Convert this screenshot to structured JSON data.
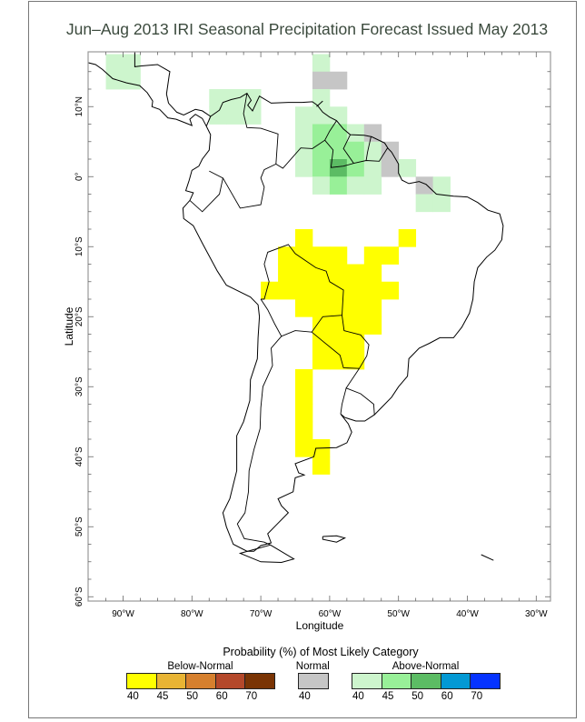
{
  "title": "Jun–Aug 2013 IRI Seasonal Precipitation Forecast Issued May 2013",
  "axes": {
    "xlabel": "Longitude",
    "ylabel": "Latitude",
    "lon_ticks": [
      {
        "lon": -90,
        "label": "90°W"
      },
      {
        "lon": -80,
        "label": "80°W"
      },
      {
        "lon": -70,
        "label": "70°W"
      },
      {
        "lon": -60,
        "label": "60°W"
      },
      {
        "lon": -50,
        "label": "50°W"
      },
      {
        "lon": -40,
        "label": "40°W"
      },
      {
        "lon": -30,
        "label": "30°W"
      }
    ],
    "lat_ticks": [
      {
        "lat": 10,
        "label": "10°N"
      },
      {
        "lat": 0,
        "label": "0°"
      },
      {
        "lat": -10,
        "label": "10°S"
      },
      {
        "lat": -20,
        "label": "20°S"
      },
      {
        "lat": -30,
        "label": "30°S"
      },
      {
        "lat": -40,
        "label": "40°S"
      },
      {
        "lat": -50,
        "label": "50°S"
      },
      {
        "lat": -60,
        "label": "60°S"
      }
    ],
    "lon_range": [
      -95,
      -28
    ],
    "lat_range": [
      -60.6,
      17.8
    ]
  },
  "legend": {
    "title": "Probability (%) of Most Likely Category",
    "groups": [
      {
        "name": "Below-Normal",
        "key": "B",
        "levels": [
          {
            "label": "40",
            "color": "#ffff00"
          },
          {
            "label": "45",
            "color": "#e8b434"
          },
          {
            "label": "50",
            "color": "#d6802e"
          },
          {
            "label": "60",
            "color": "#b4482a"
          },
          {
            "label": "70",
            "color": "#7a3404"
          }
        ]
      },
      {
        "name": "Normal",
        "key": "N",
        "levels": [
          {
            "label": "40",
            "color": "#c6c6c6"
          }
        ]
      },
      {
        "name": "Above-Normal",
        "key": "A",
        "levels": [
          {
            "label": "40",
            "color": "#cdf5cd"
          },
          {
            "label": "45",
            "color": "#98f098"
          },
          {
            "label": "50",
            "color": "#5cbc64"
          },
          {
            "label": "60",
            "color": "#0399d4"
          },
          {
            "label": "70",
            "color": "#0533ff"
          }
        ]
      }
    ]
  },
  "cell_size_deg": 2.5,
  "cells": [
    {
      "lon": -92.5,
      "lat": 17.5,
      "cat": "A",
      "p": 40
    },
    {
      "lon": -90,
      "lat": 17.5,
      "cat": "A",
      "p": 40
    },
    {
      "lon": -92.5,
      "lat": 15,
      "cat": "A",
      "p": 40
    },
    {
      "lon": -90,
      "lat": 15,
      "cat": "A",
      "p": 40
    },
    {
      "lon": -77.5,
      "lat": 12.5,
      "cat": "A",
      "p": 40
    },
    {
      "lon": -75,
      "lat": 12.5,
      "cat": "A",
      "p": 40
    },
    {
      "lon": -72.5,
      "lat": 12.5,
      "cat": "A",
      "p": 40
    },
    {
      "lon": -77.5,
      "lat": 10,
      "cat": "A",
      "p": 40
    },
    {
      "lon": -75,
      "lat": 10,
      "cat": "A",
      "p": 40
    },
    {
      "lon": -72.5,
      "lat": 10,
      "cat": "A",
      "p": 40
    },
    {
      "lon": -62.5,
      "lat": 17.5,
      "cat": "A",
      "p": 40
    },
    {
      "lon": -62.5,
      "lat": 15,
      "cat": "N",
      "p": 40
    },
    {
      "lon": -60,
      "lat": 15,
      "cat": "N",
      "p": 40
    },
    {
      "lon": -62.5,
      "lat": 12.5,
      "cat": "A",
      "p": 40
    },
    {
      "lon": -65,
      "lat": 10,
      "cat": "A",
      "p": 40
    },
    {
      "lon": -62.5,
      "lat": 10,
      "cat": "A",
      "p": 40
    },
    {
      "lon": -60,
      "lat": 10,
      "cat": "A",
      "p": 40
    },
    {
      "lon": -65,
      "lat": 7.5,
      "cat": "A",
      "p": 40
    },
    {
      "lon": -62.5,
      "lat": 7.5,
      "cat": "A",
      "p": 45
    },
    {
      "lon": -60,
      "lat": 7.5,
      "cat": "A",
      "p": 45
    },
    {
      "lon": -57.5,
      "lat": 7.5,
      "cat": "A",
      "p": 40
    },
    {
      "lon": -55,
      "lat": 7.5,
      "cat": "N",
      "p": 40
    },
    {
      "lon": -65,
      "lat": 5,
      "cat": "A",
      "p": 40
    },
    {
      "lon": -62.5,
      "lat": 5,
      "cat": "A",
      "p": 45
    },
    {
      "lon": -60,
      "lat": 5,
      "cat": "A",
      "p": 45
    },
    {
      "lon": -57.5,
      "lat": 5,
      "cat": "A",
      "p": 45
    },
    {
      "lon": -55,
      "lat": 5,
      "cat": "A",
      "p": 40
    },
    {
      "lon": -52.5,
      "lat": 5,
      "cat": "N",
      "p": 40
    },
    {
      "lon": -65,
      "lat": 2.5,
      "cat": "A",
      "p": 40
    },
    {
      "lon": -62.5,
      "lat": 2.5,
      "cat": "A",
      "p": 45
    },
    {
      "lon": -60,
      "lat": 2.5,
      "cat": "A",
      "p": 50
    },
    {
      "lon": -57.5,
      "lat": 2.5,
      "cat": "A",
      "p": 45
    },
    {
      "lon": -55,
      "lat": 2.5,
      "cat": "A",
      "p": 40
    },
    {
      "lon": -52.5,
      "lat": 2.5,
      "cat": "N",
      "p": 40
    },
    {
      "lon": -50,
      "lat": 2.5,
      "cat": "A",
      "p": 40
    },
    {
      "lon": -62.5,
      "lat": 0,
      "cat": "A",
      "p": 40
    },
    {
      "lon": -60,
      "lat": 0,
      "cat": "A",
      "p": 45
    },
    {
      "lon": -57.5,
      "lat": 0,
      "cat": "A",
      "p": 40
    },
    {
      "lon": -55,
      "lat": 0,
      "cat": "A",
      "p": 40
    },
    {
      "lon": -47.5,
      "lat": 0,
      "cat": "N",
      "p": 40
    },
    {
      "lon": -45,
      "lat": 0,
      "cat": "A",
      "p": 40
    },
    {
      "lon": -47.5,
      "lat": -2.5,
      "cat": "A",
      "p": 40
    },
    {
      "lon": -45,
      "lat": -2.5,
      "cat": "A",
      "p": 40
    },
    {
      "lon": -65,
      "lat": -7.5,
      "cat": "B",
      "p": 40
    },
    {
      "lon": -50,
      "lat": -7.5,
      "cat": "B",
      "p": 40
    },
    {
      "lon": -67.5,
      "lat": -10,
      "cat": "B",
      "p": 40
    },
    {
      "lon": -65,
      "lat": -10,
      "cat": "B",
      "p": 40
    },
    {
      "lon": -62.5,
      "lat": -10,
      "cat": "B",
      "p": 40
    },
    {
      "lon": -60,
      "lat": -10,
      "cat": "B",
      "p": 40
    },
    {
      "lon": -55,
      "lat": -10,
      "cat": "B",
      "p": 40
    },
    {
      "lon": -52.5,
      "lat": -10,
      "cat": "B",
      "p": 40
    },
    {
      "lon": -67.5,
      "lat": -12.5,
      "cat": "B",
      "p": 40
    },
    {
      "lon": -65,
      "lat": -12.5,
      "cat": "B",
      "p": 40
    },
    {
      "lon": -62.5,
      "lat": -12.5,
      "cat": "B",
      "p": 40
    },
    {
      "lon": -60,
      "lat": -12.5,
      "cat": "B",
      "p": 40
    },
    {
      "lon": -57.5,
      "lat": -12.5,
      "cat": "B",
      "p": 40
    },
    {
      "lon": -55,
      "lat": -12.5,
      "cat": "B",
      "p": 40
    },
    {
      "lon": -70,
      "lat": -15,
      "cat": "B",
      "p": 40
    },
    {
      "lon": -67.5,
      "lat": -15,
      "cat": "B",
      "p": 40
    },
    {
      "lon": -65,
      "lat": -15,
      "cat": "B",
      "p": 40
    },
    {
      "lon": -62.5,
      "lat": -15,
      "cat": "B",
      "p": 40
    },
    {
      "lon": -60,
      "lat": -15,
      "cat": "B",
      "p": 40
    },
    {
      "lon": -57.5,
      "lat": -15,
      "cat": "B",
      "p": 40
    },
    {
      "lon": -55,
      "lat": -15,
      "cat": "B",
      "p": 40
    },
    {
      "lon": -52.5,
      "lat": -15,
      "cat": "B",
      "p": 40
    },
    {
      "lon": -65,
      "lat": -17.5,
      "cat": "B",
      "p": 40
    },
    {
      "lon": -62.5,
      "lat": -17.5,
      "cat": "B",
      "p": 40
    },
    {
      "lon": -60,
      "lat": -17.5,
      "cat": "B",
      "p": 40
    },
    {
      "lon": -57.5,
      "lat": -17.5,
      "cat": "B",
      "p": 40
    },
    {
      "lon": -55,
      "lat": -17.5,
      "cat": "B",
      "p": 40
    },
    {
      "lon": -62.5,
      "lat": -20,
      "cat": "B",
      "p": 40
    },
    {
      "lon": -60,
      "lat": -20,
      "cat": "B",
      "p": 40
    },
    {
      "lon": -57.5,
      "lat": -20,
      "cat": "B",
      "p": 40
    },
    {
      "lon": -55,
      "lat": -20,
      "cat": "B",
      "p": 40
    },
    {
      "lon": -62.5,
      "lat": -22.5,
      "cat": "B",
      "p": 40
    },
    {
      "lon": -60,
      "lat": -22.5,
      "cat": "B",
      "p": 40
    },
    {
      "lon": -57.5,
      "lat": -22.5,
      "cat": "B",
      "p": 40
    },
    {
      "lon": -62.5,
      "lat": -25,
      "cat": "B",
      "p": 40
    },
    {
      "lon": -60,
      "lat": -25,
      "cat": "B",
      "p": 40
    },
    {
      "lon": -57.5,
      "lat": -25,
      "cat": "B",
      "p": 40
    },
    {
      "lon": -65,
      "lat": -27.5,
      "cat": "B",
      "p": 40
    },
    {
      "lon": -65,
      "lat": -30,
      "cat": "B",
      "p": 40
    },
    {
      "lon": -65,
      "lat": -32.5,
      "cat": "B",
      "p": 40
    },
    {
      "lon": -65,
      "lat": -35,
      "cat": "B",
      "p": 40
    },
    {
      "lon": -65,
      "lat": -37.5,
      "cat": "B",
      "p": 40
    },
    {
      "lon": -62.5,
      "lat": -37.5,
      "cat": "B",
      "p": 40
    },
    {
      "lon": -62.5,
      "lat": -40,
      "cat": "B",
      "p": 40
    }
  ]
}
